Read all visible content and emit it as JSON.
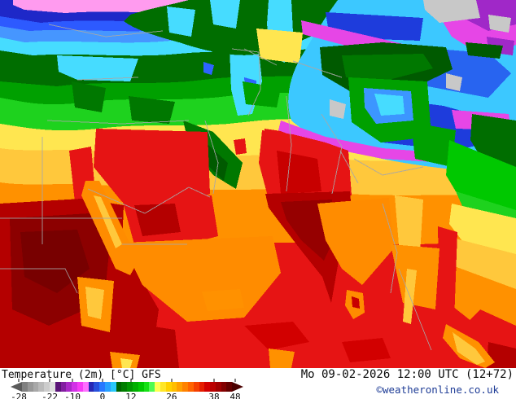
{
  "map": {
    "description": "GFS 2m temperature filled-contour map over North Africa, Middle East, Central and South Asia",
    "key_colors": {
      "very_cold_gray": "#c8c8c8",
      "cold_magenta": "#e646e6",
      "cold_purple": "#a028c8",
      "cold_dark_blue": "#1e3cdc",
      "cold_cyan": "#46dcff",
      "cool_dark_green": "#006e00",
      "mild_green": "#1ed21e",
      "warm_yellow": "#ffe650",
      "warm_amber": "#ffc83c",
      "hot_orange": "#ff9100",
      "hot_red": "#e61414",
      "very_hot_dark_red": "#b40000",
      "border_gray": "#a8a8a8",
      "top_band_pink": "#ff9bef"
    }
  },
  "footer": {
    "title": "Temperature (2m) [°C] GFS",
    "datetime": "Mo 09-02-2026 12:00 UTC (12+72)",
    "copyright": "©weatheronline.co.uk"
  },
  "colorbar": {
    "unit": "°C",
    "ticks": [
      {
        "label": "-28",
        "pos": 3.5
      },
      {
        "label": "-22",
        "pos": 16.8
      },
      {
        "label": "-10",
        "pos": 26.6
      },
      {
        "label": "0",
        "pos": 39.5
      },
      {
        "label": "12",
        "pos": 51.7
      },
      {
        "label": "26",
        "pos": 69.2
      },
      {
        "label": "38",
        "pos": 87.4
      },
      {
        "label": "48",
        "pos": 96.5
      }
    ],
    "segments": [
      "#808080",
      "#979797",
      "#a8a8a8",
      "#bababa",
      "#cccccc",
      "#dedede",
      "#5a1478",
      "#821ea0",
      "#aa28c8",
      "#d232e6",
      "#f53cf5",
      "#ff6eff",
      "#2828b4",
      "#2850dc",
      "#2878ff",
      "#28a0ff",
      "#28c8fa",
      "#006400",
      "#007d00",
      "#009600",
      "#00af00",
      "#00c800",
      "#14e114",
      "#50fa50",
      "#ffff50",
      "#ffe628",
      "#ffd200",
      "#ffbe00",
      "#ffa000",
      "#ff8200",
      "#ff6400",
      "#f54000",
      "#e61e00",
      "#d20000",
      "#bb0000",
      "#a00000",
      "#820000",
      "#640000"
    ]
  }
}
